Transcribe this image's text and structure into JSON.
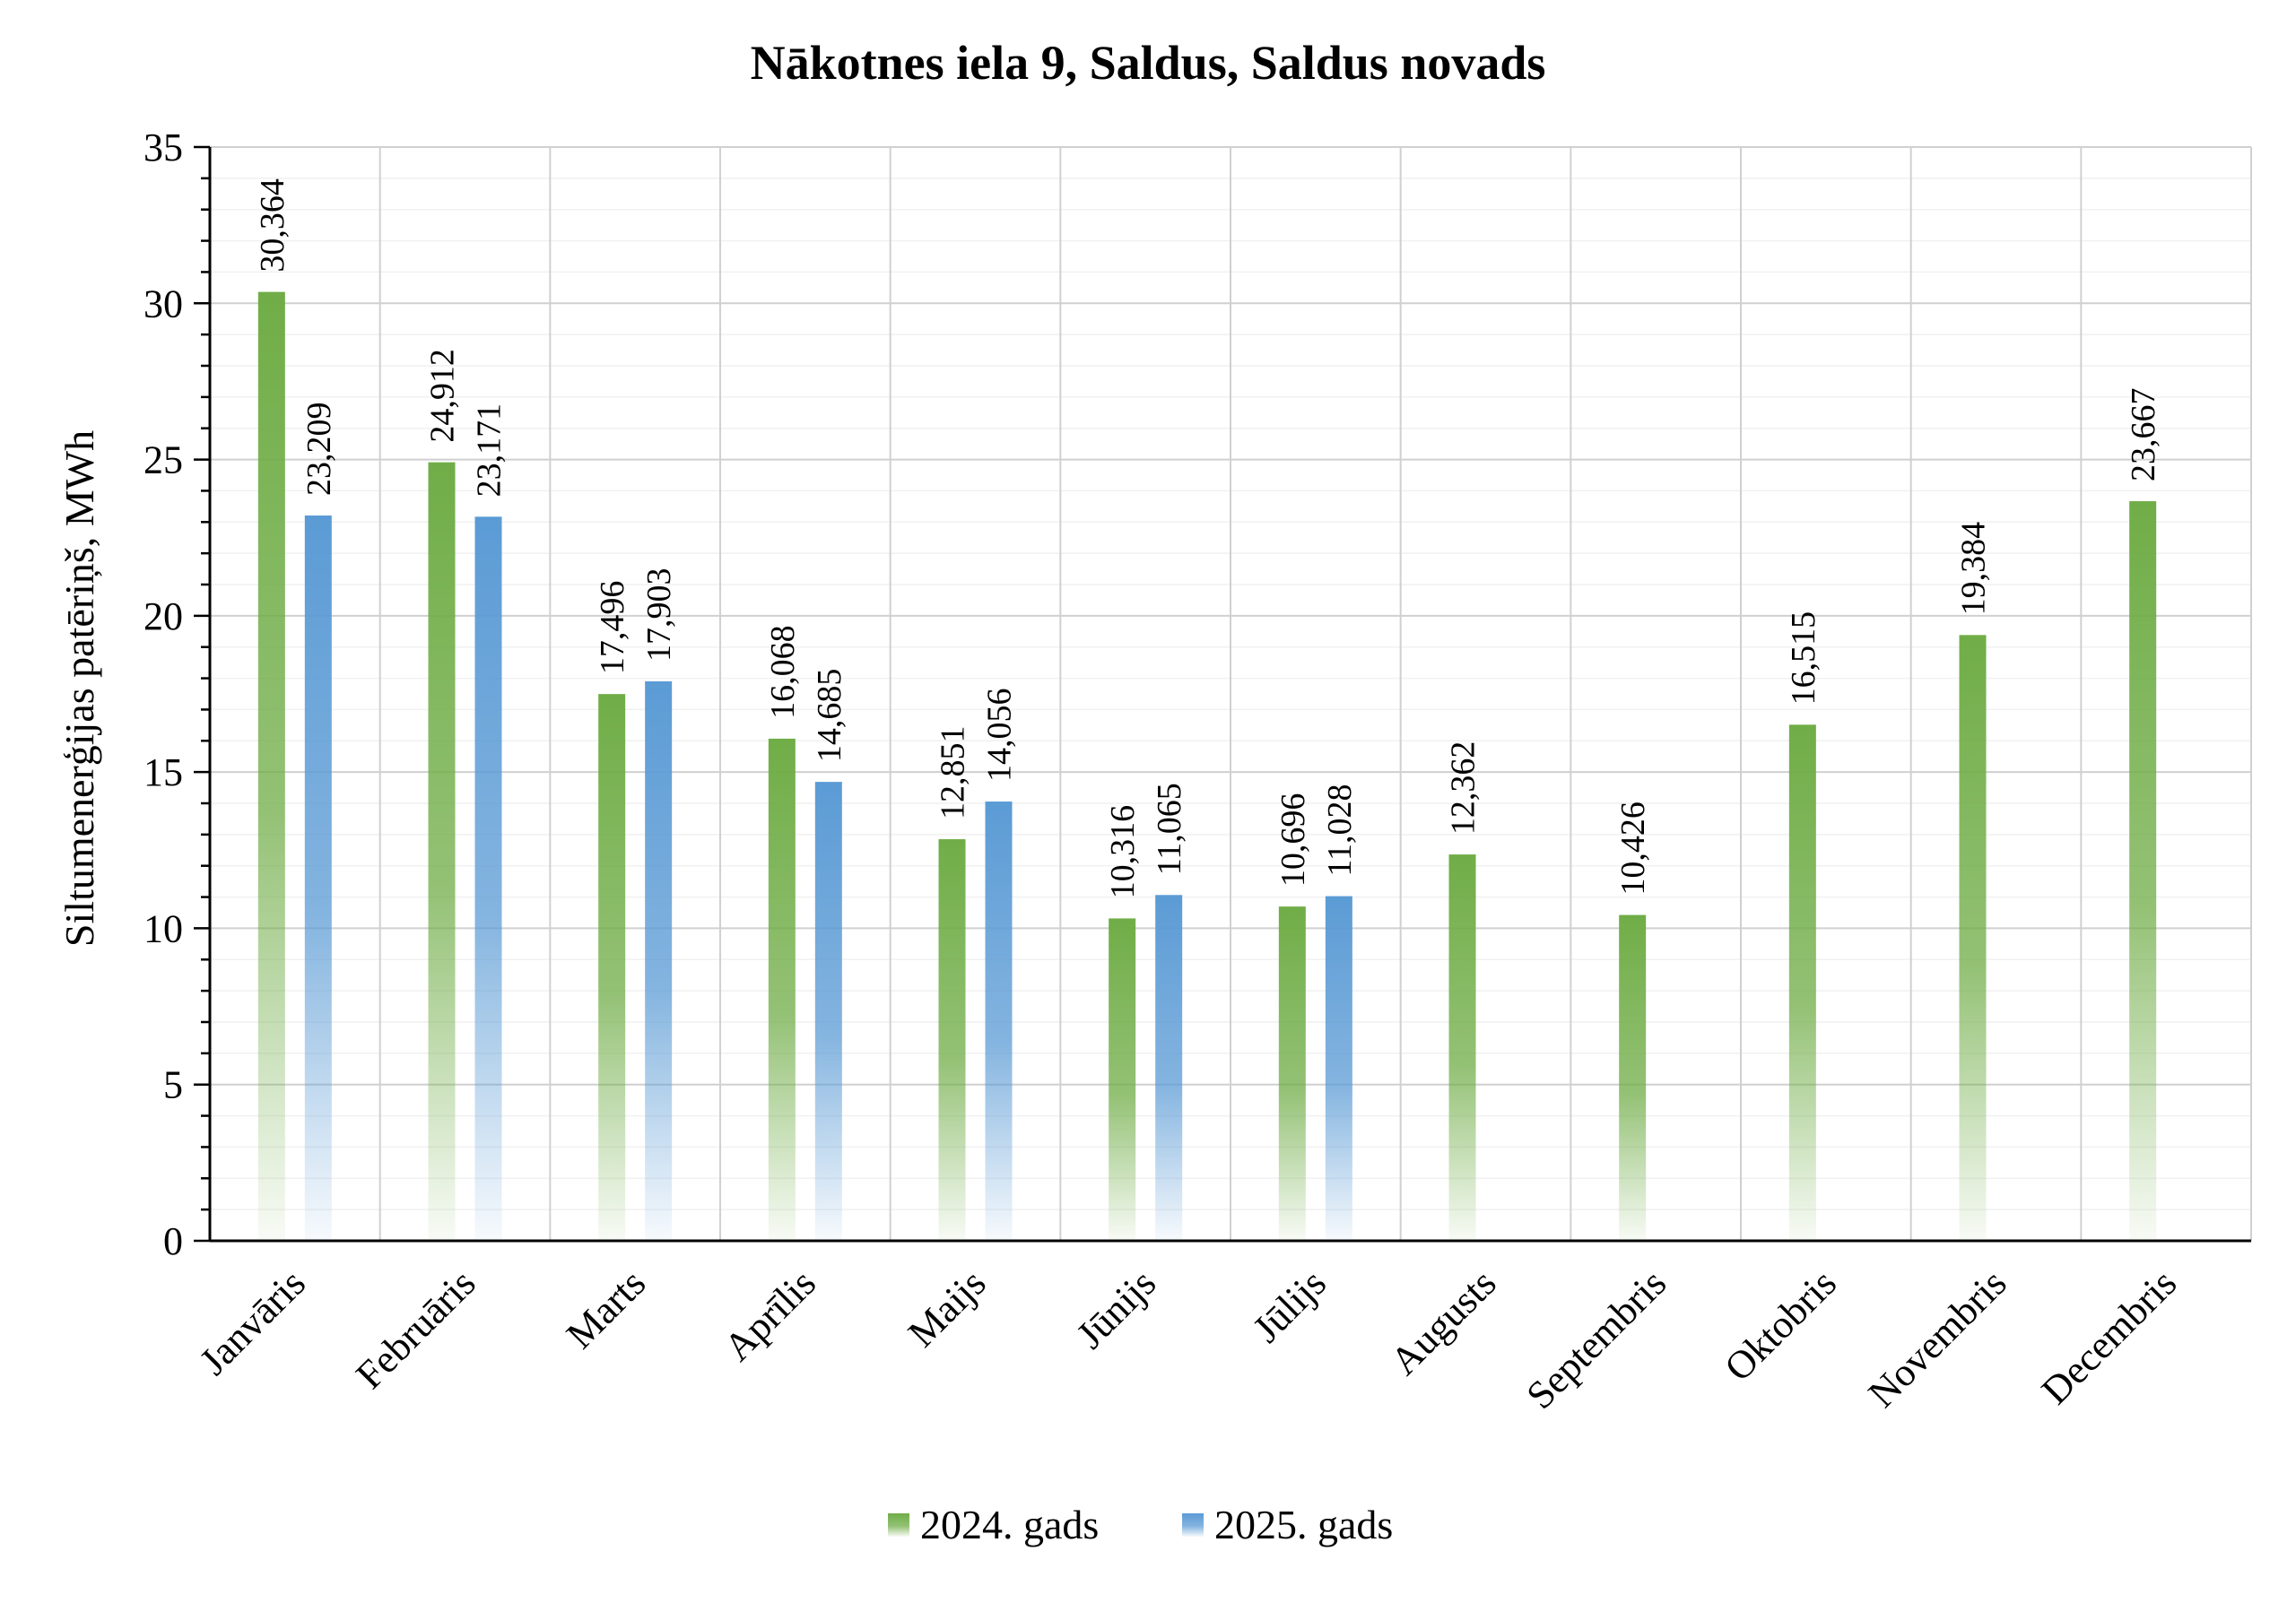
{
  "chart_data": {
    "type": "bar",
    "title": "Nākotnes iela 9, Saldus, Saldus novads",
    "xlabel": "",
    "ylabel": "Siltumenerģijas patēriņš, MWh",
    "ylim": [
      0,
      35
    ],
    "yticks": [
      "0",
      "5",
      "10",
      "15",
      "20",
      "25",
      "30",
      "35"
    ],
    "grid": true,
    "legend_position": "bottom",
    "categories": [
      "Janvāris",
      "Februāris",
      "Marts",
      "Aprīlis",
      "Maijs",
      "Jūnijs",
      "Jūlijs",
      "Augusts",
      "Septembris",
      "Oktobris",
      "Novembris",
      "Decembris"
    ],
    "series": [
      {
        "name": "2024. gads",
        "color": "#70ad47",
        "values": [
          30.364,
          24.912,
          17.496,
          16.068,
          12.851,
          10.316,
          10.696,
          12.362,
          10.426,
          16.515,
          19.384,
          23.667
        ],
        "labels": [
          "30,364",
          "24,912",
          "17,496",
          "16,068",
          "12,851",
          "10,316",
          "10,696",
          "12,362",
          "10,426",
          "16,515",
          "19,384",
          "23,667"
        ]
      },
      {
        "name": "2025. gads",
        "color": "#5b9bd5",
        "values": [
          23.209,
          23.171,
          17.903,
          14.685,
          14.056,
          11.065,
          11.028,
          null,
          null,
          null,
          null,
          null
        ],
        "labels": [
          "23,209",
          "23,171",
          "17,903",
          "14,685",
          "14,056",
          "11,065",
          "11,028",
          null,
          null,
          null,
          null,
          null
        ]
      }
    ]
  }
}
